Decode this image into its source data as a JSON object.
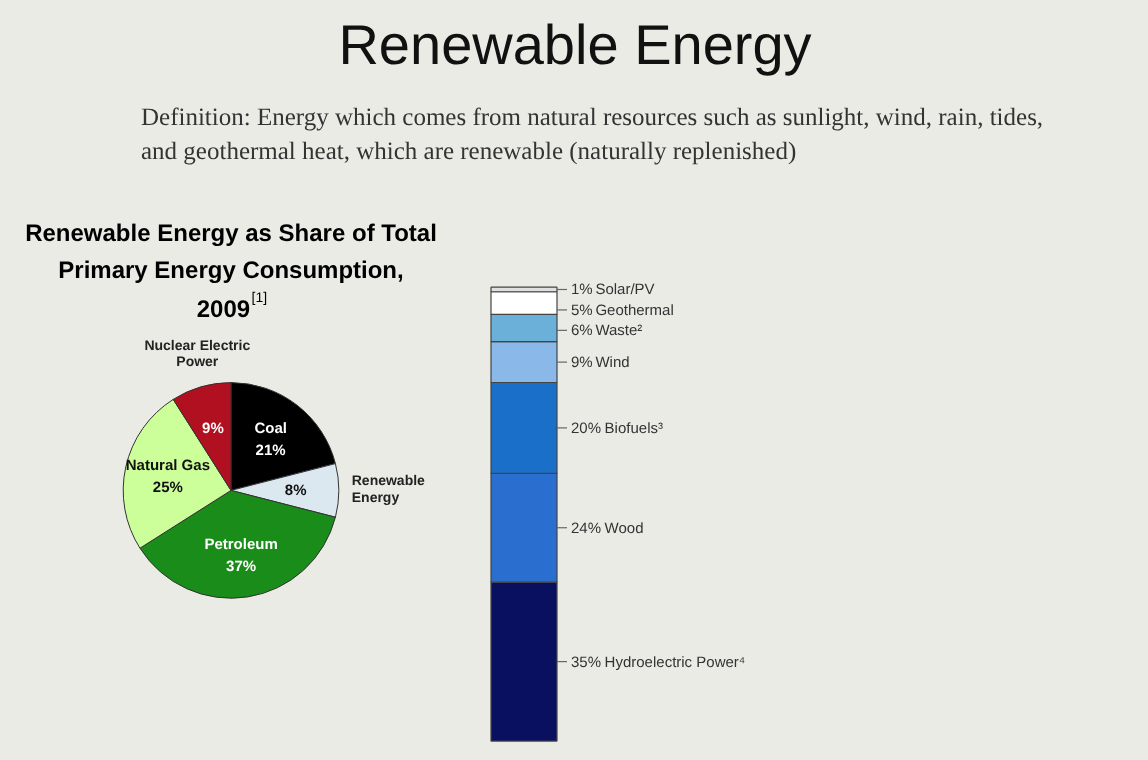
{
  "chart_data": [
    {
      "type": "other",
      "title": "Renewable Energy",
      "subtitle": "Definition: Energy which comes from natural resources such as sunlight, wind, rain, tides, and geothermal heat, which are renewable (naturally replenished)"
    },
    {
      "type": "pie",
      "title": "Renewable Energy as Share of Total Primary Energy Consumption, 2009$^{[1]}$",
      "categories": [
        "Coal",
        "Renewable Energy",
        "Petroleum",
        "Natural Gas",
        "Nuclear Electric Power"
      ],
      "values": [
        21,
        8,
        37,
        25,
        9
      ],
      "colors": [
        "#000000",
        "#dce8f0",
        "#1a8c1a",
        "#ccff99",
        "#b01020"
      ],
      "value_labels": [
        "21%",
        "8%",
        "37%",
        "25%",
        "9%"
      ]
    },
    {
      "type": "bar",
      "stacked": true,
      "categories": [
        null
      ],
      "series": [
        {
          "name": "Hydroelectric Power⁴",
          "color": "#0a1060",
          "values": [
            35
          ],
          "value_labels": [
            "35%"
          ]
        },
        {
          "name": "Wood",
          "color": "#2a6fd0",
          "values": [
            24
          ],
          "value_labels": [
            "24%"
          ]
        },
        {
          "name": "Biofuels³",
          "color": "#1a6fc8",
          "values": [
            20
          ],
          "value_labels": [
            "20%"
          ]
        },
        {
          "name": "Wind",
          "color": "#8ab8e8",
          "values": [
            9
          ],
          "value_labels": [
            "9%"
          ]
        },
        {
          "name": "Waste²",
          "color": "#6ab0d8",
          "values": [
            6
          ],
          "value_labels": [
            "6%"
          ]
        },
        {
          "name": "Geothermal",
          "color": "#ffffff",
          "values": [
            5
          ],
          "value_labels": [
            "5%"
          ]
        },
        {
          "name": "Solar/PV",
          "color": "#e0e0e0",
          "values": [
            1
          ],
          "value_labels": [
            "1%"
          ]
        }
      ]
    }
  ]
}
